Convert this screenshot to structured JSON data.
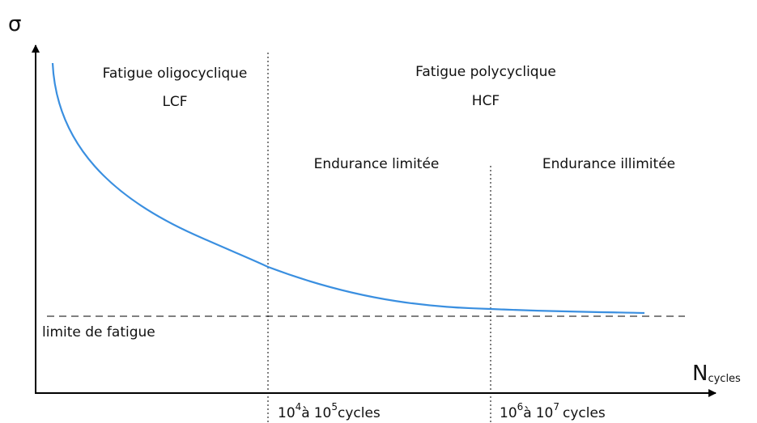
{
  "axes": {
    "y_label": "σ",
    "x_label": {
      "main": "N",
      "subscript": "cycles"
    }
  },
  "regions": [
    {
      "title": "Fatigue oligocyclique",
      "abbr": "LCF"
    },
    {
      "title": "Fatigue polycyclique",
      "abbr": "HCF"
    }
  ],
  "subregions": [
    "Endurance limitée",
    "Endurance illimitée"
  ],
  "fatigue_limit": "limite de fatigue",
  "boundaries": [
    {
      "from_base": "10",
      "from_exp": "4",
      "connector": "à",
      "to_base": "10",
      "to_exp": "5",
      "unit": "cycles"
    },
    {
      "from_base": "10",
      "from_exp": "6",
      "connector": "à",
      "to_base": "10",
      "to_exp": "7",
      "unit": "cycles"
    }
  ]
}
